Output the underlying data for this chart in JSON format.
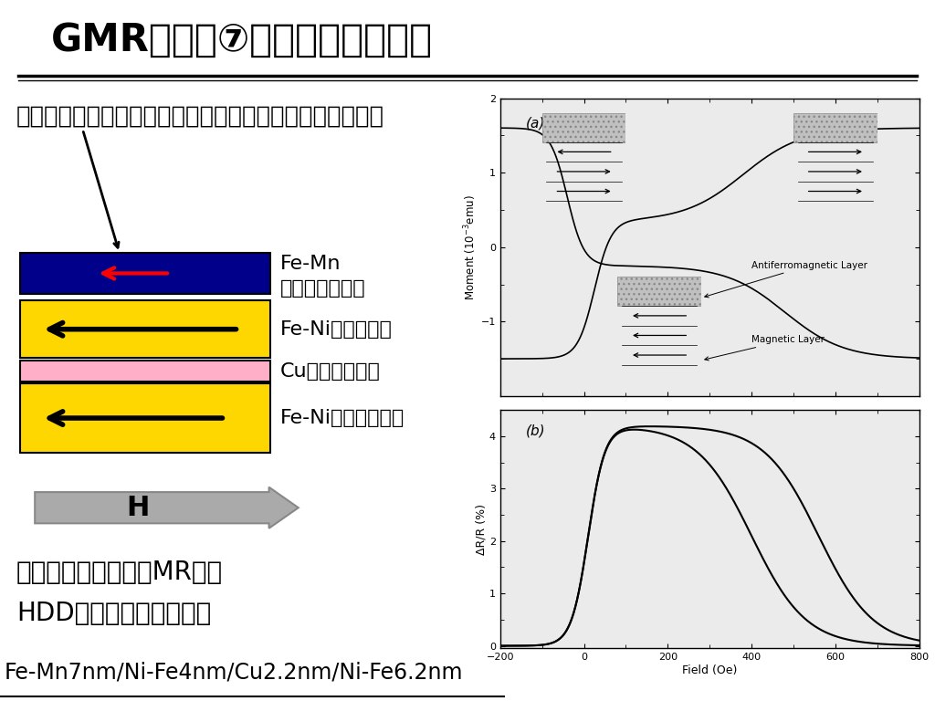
{
  "title": "GMRセンサ⑦　スピンバルブ膜",
  "subtitle": "交換バイアス：反磁性層の影響で，等価的に磁界ができる",
  "label_feMn1": "Fe-Mn",
  "label_feMn2": "（反強磁性層）",
  "label_feNi_pin": "Fe-Ni（ピン層）",
  "label_cu": "Cu（非磁性層）",
  "label_feNi_free": "Fe-Ni（フリー層）",
  "bottom_text1": "小さな磁界で大きなMR効果",
  "bottom_text2": "HDD用ヘッドとして実用",
  "formula_text": "Fe-Mn7nm/Ni-Fe4nm/Cu2.2nm/Ni-Fe6.2nm",
  "layer_colors": [
    "#00008B",
    "#FFD700",
    "#FFB0C8",
    "#FFD700"
  ],
  "bg_color": "#FFFFFF",
  "text_color": "#000000"
}
